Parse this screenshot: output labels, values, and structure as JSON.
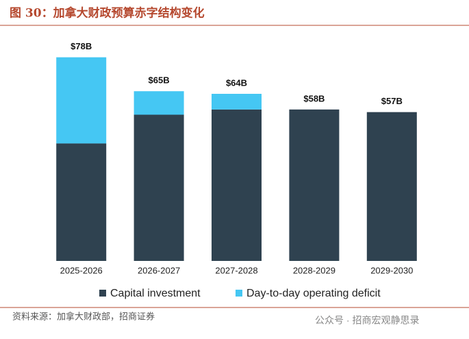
{
  "chart_data": {
    "type": "stacked_bar",
    "title": "图 30：加拿大财政预算赤字结构变化",
    "source": "资料来源：加拿大财政部，招商证券",
    "watermark": "公众号 · 招商宏观静思录",
    "categories": [
      "2025-2026",
      "2026-2027",
      "2027-2028",
      "2028-2029",
      "2029-2030"
    ],
    "series": [
      {
        "name": "Capital investment",
        "color": "#2f4250",
        "values": [
          45,
          56,
          58,
          58,
          57
        ]
      },
      {
        "name": "Day-to-day operating deficit",
        "color": "#45c7f3",
        "values": [
          33,
          9,
          6,
          0,
          0
        ]
      }
    ],
    "totals": {
      "values": [
        78,
        65,
        64,
        58,
        57
      ],
      "value_labels": [
        "$78B",
        "$65B",
        "$64B",
        "$58B",
        "$57B"
      ]
    },
    "ylim": [
      0,
      80
    ],
    "legend": "bottom"
  }
}
